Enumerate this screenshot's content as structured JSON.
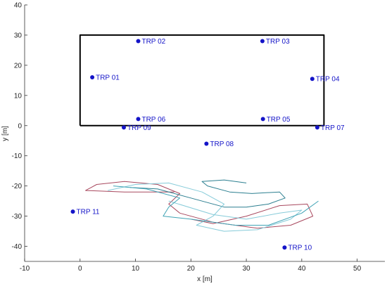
{
  "chart_data": {
    "type": "scatter",
    "xlabel": "x [m]",
    "ylabel": "y [m]",
    "xlim": [
      -10,
      55
    ],
    "ylim": [
      -45,
      40
    ],
    "xticks": [
      -10,
      0,
      10,
      20,
      30,
      40,
      50
    ],
    "yticks": [
      -40,
      -30,
      -20,
      -10,
      0,
      10,
      20,
      30,
      40
    ],
    "points": {
      "color": "#1414c8",
      "labels": [
        "TRP 01",
        "TRP 02",
        "TRP 03",
        "TRP 04",
        "TRP 05",
        "TRP 06",
        "TRP 07",
        "TRP 08",
        "TRP 09",
        "TRP 10",
        "TRP 11"
      ],
      "x": [
        2.2,
        10.5,
        32.9,
        41.9,
        33,
        10.5,
        42.8,
        22.8,
        7.9,
        36.9,
        -1.3
      ],
      "y": [
        16,
        28,
        28,
        15.5,
        2.2,
        2.2,
        -0.6,
        -6,
        -0.6,
        -40.4,
        -28.5
      ]
    },
    "lines": [
      {
        "color": "#000000",
        "width": 2,
        "x": [
          0,
          44,
          44,
          0,
          0
        ],
        "y": [
          0,
          0,
          30,
          30,
          0
        ]
      },
      {
        "color": "#a8485e",
        "width": 1,
        "x": [
          17,
          8,
          1,
          3,
          8,
          14,
          18,
          16,
          18,
          24,
          32,
          38,
          42,
          41,
          36,
          30,
          24,
          20
        ],
        "y": [
          -22,
          -22,
          -21.5,
          -19.5,
          -18.5,
          -19.5,
          -22.5,
          -26,
          -29,
          -32,
          -34,
          -33,
          -30,
          -26,
          -26.5,
          -30,
          -32.5,
          -31
        ]
      },
      {
        "color": "#2c7f90",
        "width": 1,
        "x": [
          9,
          14,
          20,
          26,
          30,
          34,
          37,
          36,
          31,
          27,
          23,
          22,
          26,
          30
        ],
        "y": [
          -20.5,
          -21,
          -24,
          -27,
          -27,
          -26,
          -24,
          -22,
          -22.5,
          -22,
          -20,
          -18.5,
          -18,
          -19
        ]
      },
      {
        "color": "#86cbd9",
        "width": 1,
        "x": [
          5,
          10,
          16,
          22,
          26,
          24,
          21,
          26,
          32,
          38,
          40,
          36,
          30,
          24,
          16
        ],
        "y": [
          -21.5,
          -19.5,
          -19,
          -22,
          -26,
          -30,
          -33,
          -35,
          -34.5,
          -31,
          -28,
          -29,
          -31,
          -29.5,
          -25
        ]
      },
      {
        "color": "#3fa3b5",
        "width": 1,
        "x": [
          6,
          12,
          18,
          16,
          15,
          20,
          28,
          34,
          40,
          43
        ],
        "y": [
          -20,
          -21,
          -24,
          -27,
          -30,
          -31,
          -33,
          -33,
          -29,
          -25
        ]
      }
    ]
  }
}
